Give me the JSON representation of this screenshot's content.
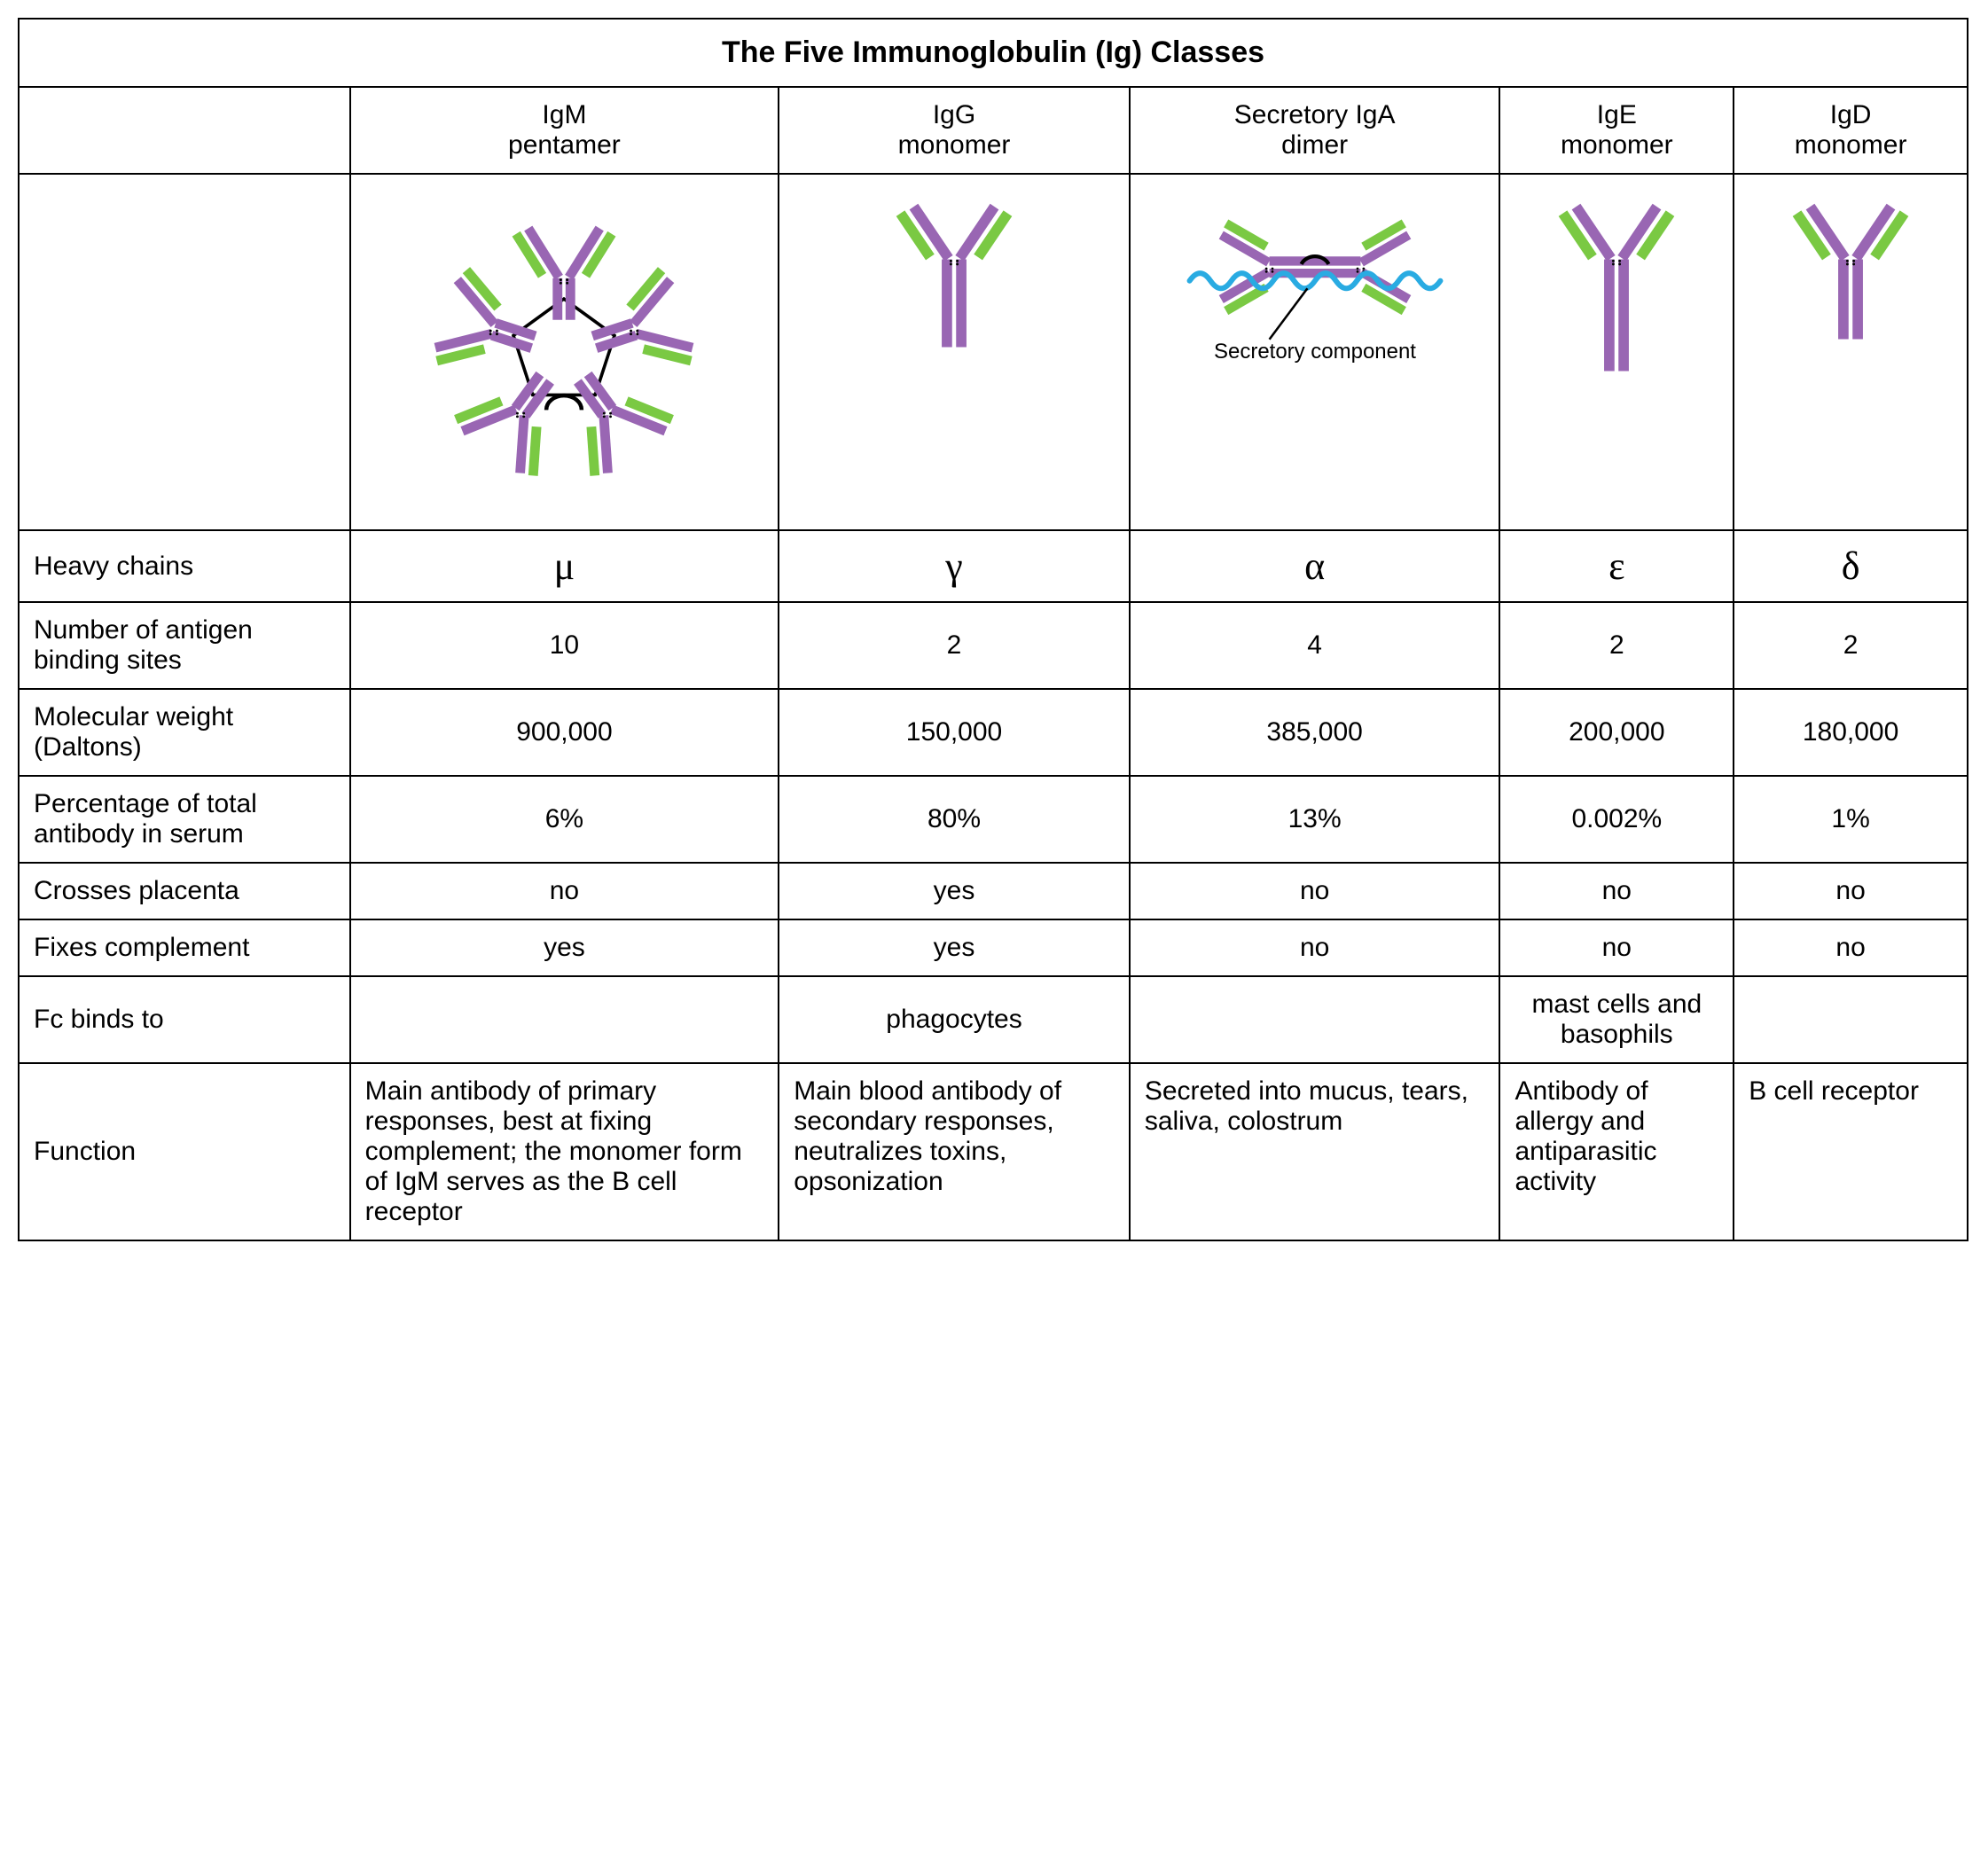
{
  "title": "The Five Immunoglobulin (Ig) Classes",
  "colors": {
    "heavy": "#9966b3",
    "light": "#7ac943",
    "jchain": "#000000",
    "secretory": "#29abe2",
    "border": "#000000",
    "bg": "#ffffff"
  },
  "columns": [
    {
      "line1": "IgM",
      "line2": "pentamer"
    },
    {
      "line1": "IgG",
      "line2": "monomer"
    },
    {
      "line1": "Secretory IgA",
      "line2": "dimer"
    },
    {
      "line1": "IgE",
      "line2": "monomer"
    },
    {
      "line1": "IgD",
      "line2": "monomer"
    }
  ],
  "diagram_label": "Secretory component",
  "rows": [
    {
      "label": "Heavy chains",
      "values": [
        "μ",
        "γ",
        "α",
        "ε",
        "δ"
      ],
      "greek": true
    },
    {
      "label": "Number of antigen binding sites",
      "values": [
        "10",
        "2",
        "4",
        "2",
        "2"
      ]
    },
    {
      "label": "Molecular weight (Daltons)",
      "values": [
        "900,000",
        "150,000",
        "385,000",
        "200,000",
        "180,000"
      ]
    },
    {
      "label": "Percentage of total antibody in serum",
      "values": [
        "6%",
        "80%",
        "13%",
        "0.002%",
        "1%"
      ]
    },
    {
      "label": "Crosses placenta",
      "values": [
        "no",
        "yes",
        "no",
        "no",
        "no"
      ]
    },
    {
      "label": "Fixes complement",
      "values": [
        "yes",
        "yes",
        "no",
        "no",
        "no"
      ]
    },
    {
      "label": "Fc binds to",
      "values": [
        "",
        "phagocytes",
        "",
        "mast cells and basophils",
        ""
      ]
    },
    {
      "label": "Function",
      "func": true,
      "values": [
        "Main antibody of primary responses, best at fixing complement; the monomer form of IgM serves as the B cell receptor",
        "Main blood antibody of secondary responses, neutralizes toxins, opsonization",
        "Secreted into mucus, tears, saliva, colostrum",
        "Antibody of allergy and antiparasitic activity",
        "B cell receptor"
      ]
    }
  ]
}
